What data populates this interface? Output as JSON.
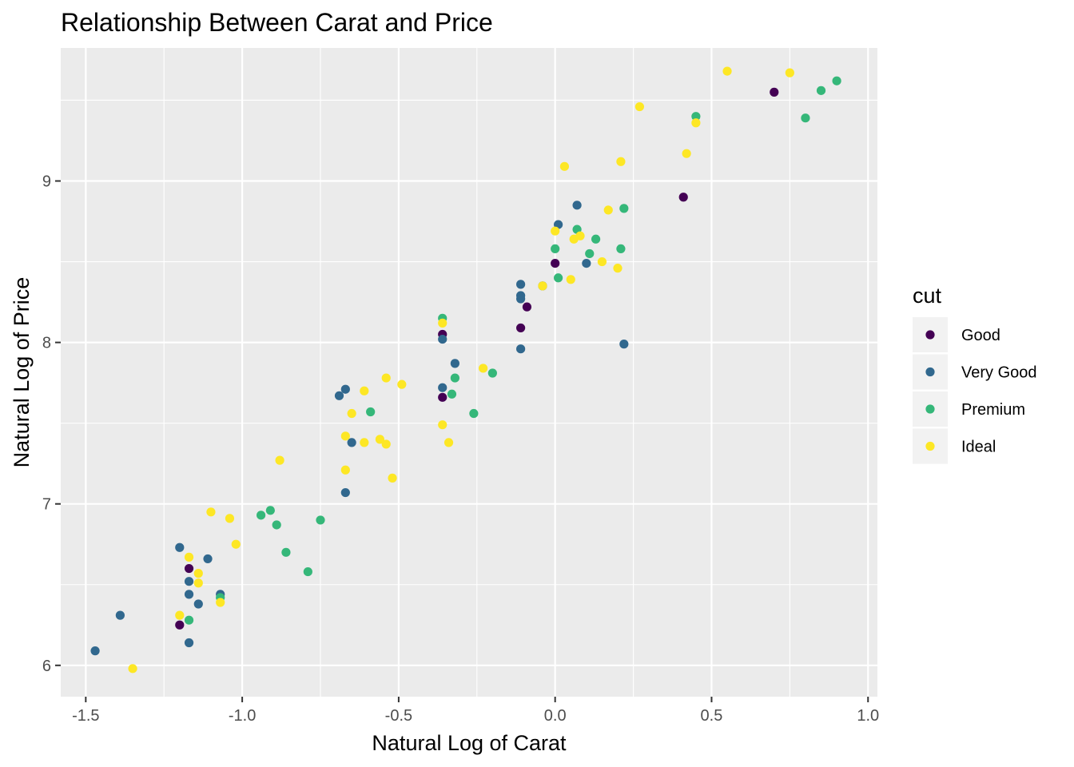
{
  "chart_data": {
    "type": "scatter",
    "title": "Relationship Between Carat and Price",
    "xlabel": "Natural Log of Carat",
    "ylabel": "Natural Log of Price",
    "xlim": [
      -1.58,
      1.03
    ],
    "ylim": [
      5.806,
      9.824
    ],
    "x_ticks": [
      -1.5,
      -1.0,
      -0.5,
      0.0,
      0.5,
      1.0
    ],
    "x_tick_labels": [
      "-1.5",
      "-1.0",
      "-0.5",
      "0.0",
      "0.5",
      "1.0"
    ],
    "y_ticks": [
      6,
      7,
      8,
      9
    ],
    "y_tick_labels": [
      "6",
      "7",
      "8",
      "9"
    ],
    "grid": true,
    "legend": {
      "title": "cut",
      "position": "right"
    },
    "series": [
      {
        "name": "Good",
        "color": "#440154",
        "points": [
          [
            0.7,
            9.55
          ],
          [
            0.41,
            8.9
          ],
          [
            0.0,
            8.49
          ],
          [
            -0.09,
            8.22
          ],
          [
            -0.11,
            8.09
          ],
          [
            -0.36,
            8.05
          ],
          [
            -0.36,
            7.66
          ],
          [
            -1.17,
            6.6
          ],
          [
            -1.2,
            6.25
          ]
        ]
      },
      {
        "name": "Very Good",
        "color": "#31688E",
        "points": [
          [
            0.07,
            8.85
          ],
          [
            0.01,
            8.73
          ],
          [
            0.1,
            8.49
          ],
          [
            -0.11,
            8.36
          ],
          [
            -0.11,
            8.29
          ],
          [
            -0.11,
            8.27
          ],
          [
            -0.04,
            8.35
          ],
          [
            -0.36,
            8.02
          ],
          [
            -0.11,
            7.96
          ],
          [
            -0.32,
            7.87
          ],
          [
            0.22,
            7.99
          ],
          [
            -0.36,
            7.72
          ],
          [
            -0.67,
            7.71
          ],
          [
            -0.69,
            7.67
          ],
          [
            -0.65,
            7.38
          ],
          [
            -0.67,
            7.07
          ],
          [
            -1.2,
            6.73
          ],
          [
            -1.11,
            6.66
          ],
          [
            -1.17,
            6.52
          ],
          [
            -1.17,
            6.44
          ],
          [
            -1.14,
            6.38
          ],
          [
            -1.07,
            6.44
          ],
          [
            -1.39,
            6.31
          ],
          [
            -1.17,
            6.14
          ],
          [
            -1.47,
            6.09
          ]
        ]
      },
      {
        "name": "Premium",
        "color": "#35B779",
        "points": [
          [
            0.9,
            9.62
          ],
          [
            0.85,
            9.56
          ],
          [
            0.8,
            9.39
          ],
          [
            0.45,
            9.4
          ],
          [
            0.22,
            8.83
          ],
          [
            0.07,
            8.7
          ],
          [
            0.13,
            8.64
          ],
          [
            0.21,
            8.58
          ],
          [
            0.11,
            8.55
          ],
          [
            0.0,
            8.58
          ],
          [
            0.01,
            8.4
          ],
          [
            -0.36,
            8.15
          ],
          [
            -0.2,
            7.81
          ],
          [
            -0.32,
            7.78
          ],
          [
            -0.33,
            7.68
          ],
          [
            -0.26,
            7.56
          ],
          [
            -0.59,
            7.57
          ],
          [
            -0.91,
            6.96
          ],
          [
            -0.94,
            6.93
          ],
          [
            -0.89,
            6.87
          ],
          [
            -0.75,
            6.9
          ],
          [
            -0.86,
            6.7
          ],
          [
            -0.79,
            6.58
          ],
          [
            -1.07,
            6.42
          ],
          [
            -1.17,
            6.28
          ]
        ]
      },
      {
        "name": "Ideal",
        "color": "#FDE725",
        "points": [
          [
            0.55,
            9.68
          ],
          [
            0.75,
            9.67
          ],
          [
            0.27,
            9.46
          ],
          [
            0.45,
            9.36
          ],
          [
            0.42,
            9.17
          ],
          [
            0.21,
            9.12
          ],
          [
            0.03,
            9.09
          ],
          [
            0.17,
            8.82
          ],
          [
            0.0,
            8.69
          ],
          [
            0.06,
            8.64
          ],
          [
            0.08,
            8.66
          ],
          [
            0.15,
            8.5
          ],
          [
            0.2,
            8.46
          ],
          [
            0.05,
            8.39
          ],
          [
            -0.04,
            8.35
          ],
          [
            -0.36,
            8.12
          ],
          [
            -0.23,
            7.84
          ],
          [
            -0.54,
            7.78
          ],
          [
            -0.49,
            7.74
          ],
          [
            -0.61,
            7.7
          ],
          [
            -0.65,
            7.56
          ],
          [
            -0.36,
            7.49
          ],
          [
            -0.67,
            7.42
          ],
          [
            -0.56,
            7.4
          ],
          [
            -0.61,
            7.38
          ],
          [
            -0.54,
            7.37
          ],
          [
            -0.34,
            7.38
          ],
          [
            -0.88,
            7.27
          ],
          [
            -0.67,
            7.21
          ],
          [
            -0.52,
            7.16
          ],
          [
            -1.1,
            6.95
          ],
          [
            -1.04,
            6.91
          ],
          [
            -1.02,
            6.75
          ],
          [
            -1.17,
            6.67
          ],
          [
            -1.14,
            6.57
          ],
          [
            -1.14,
            6.51
          ],
          [
            -1.07,
            6.39
          ],
          [
            -1.2,
            6.31
          ],
          [
            -1.35,
            5.98
          ]
        ]
      }
    ]
  }
}
